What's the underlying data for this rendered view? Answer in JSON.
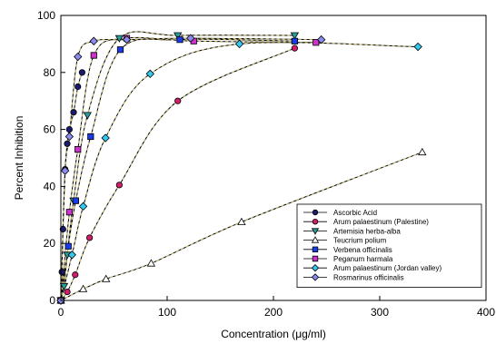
{
  "chart_data": {
    "type": "scatter",
    "xlabel": "Concentration (μg/ml)",
    "ylabel": "Percent Inhibition",
    "xlim": [
      0,
      400
    ],
    "ylim": [
      0,
      100
    ],
    "xticks": [
      0,
      100,
      200,
      300,
      400
    ],
    "yticks": [
      0,
      20,
      40,
      60,
      80,
      100
    ],
    "grid": false,
    "legend_position": "lower-right",
    "series": [
      {
        "name": "Ascorbic Acid",
        "marker": "circle",
        "color": "#1a1a6e",
        "x": [
          0,
          1,
          2,
          4,
          6,
          8,
          12,
          16,
          20
        ],
        "y": [
          0,
          10,
          25,
          46,
          55,
          60,
          66,
          75,
          80
        ]
      },
      {
        "name": "Arum palaestinum (Palestine)",
        "marker": "circle",
        "color": "#d01e6a",
        "x": [
          0,
          6,
          13.5,
          27,
          55,
          110,
          220
        ],
        "y": [
          0,
          3,
          9,
          22,
          40.5,
          70,
          88.5
        ]
      },
      {
        "name": "Artemisia herba-alba",
        "marker": "triangle-down",
        "color": "#2a9d9d",
        "x": [
          0,
          3,
          6,
          12,
          25,
          55,
          110,
          220
        ],
        "y": [
          0,
          5,
          16,
          35,
          65,
          92,
          93,
          93
        ]
      },
      {
        "name": "Teucrium polium",
        "marker": "triangle-up",
        "color": "#ffffff",
        "x": [
          0,
          21,
          42.5,
          85,
          170,
          340
        ],
        "y": [
          0,
          4,
          7.5,
          13,
          27.5,
          52
        ]
      },
      {
        "name": "Verbena officinalis",
        "marker": "square",
        "color": "#1a3be8",
        "x": [
          0,
          7,
          14,
          28,
          56,
          112,
          220
        ],
        "y": [
          0,
          19,
          35,
          57.5,
          88,
          91.5,
          91
        ]
      },
      {
        "name": "Peganum harmala",
        "marker": "square",
        "color": "#cc33cc",
        "x": [
          0,
          8,
          16,
          31,
          62,
          125,
          240
        ],
        "y": [
          0,
          31,
          53,
          86,
          92,
          91,
          90.5
        ]
      },
      {
        "name": "Arum palaestinum (Jordan valley)",
        "marker": "diamond",
        "color": "#33c8f0",
        "x": [
          0,
          10.5,
          21,
          42,
          84,
          168,
          336
        ],
        "y": [
          0,
          16,
          33,
          57,
          79.5,
          90,
          89
        ]
      },
      {
        "name": "Rosmarinus officinalis",
        "marker": "diamond",
        "color": "#8c8cf0",
        "x": [
          0,
          4,
          8,
          16,
          31,
          62,
          122,
          245
        ],
        "y": [
          0,
          45.5,
          57.5,
          85.5,
          91,
          91.5,
          92,
          91.5
        ]
      }
    ]
  }
}
